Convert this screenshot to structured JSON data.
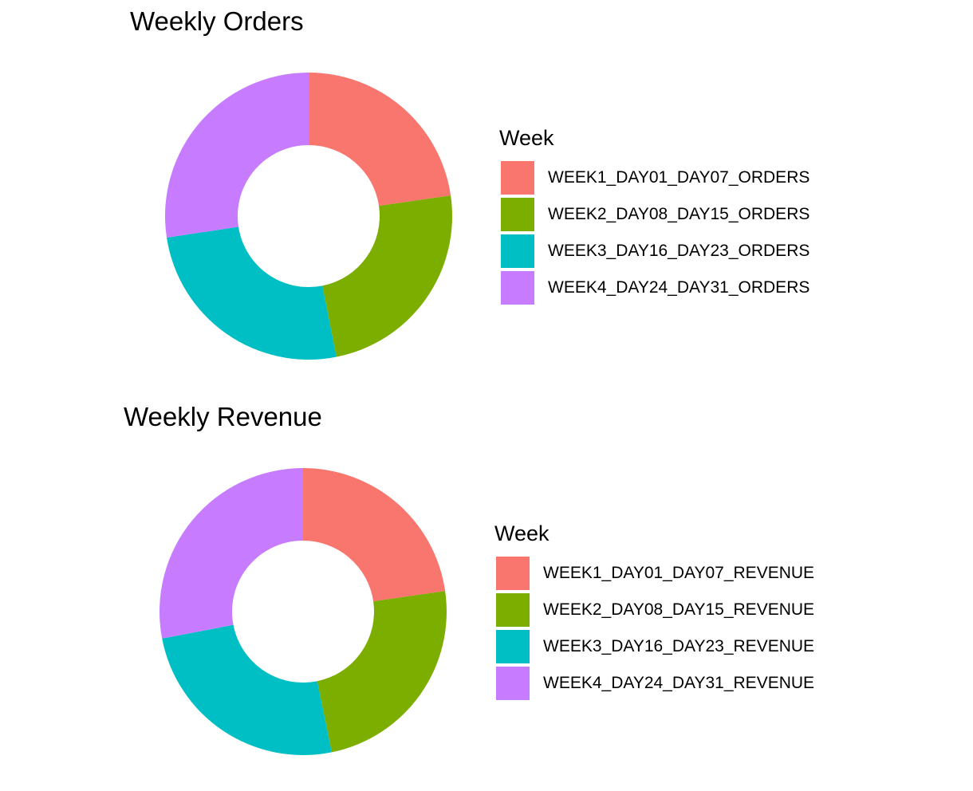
{
  "chart_data": [
    {
      "type": "pie",
      "style": "donut",
      "title": "Weekly Orders",
      "legend_title": "Week",
      "legend_position": "right",
      "categories": [
        "WEEK1_DAY01_DAY07_ORDERS",
        "WEEK2_DAY08_DAY15_ORDERS",
        "WEEK3_DAY16_DAY23_ORDERS",
        "WEEK4_DAY24_DAY31_ORDERS"
      ],
      "values": [
        22.7,
        24.2,
        25.7,
        27.4
      ],
      "colors": [
        "#F8766D",
        "#7CAE00",
        "#00BFC4",
        "#C77CFF"
      ]
    },
    {
      "type": "pie",
      "style": "donut",
      "title": "Weekly Revenue",
      "legend_title": "Week",
      "legend_position": "right",
      "categories": [
        "WEEK1_DAY01_DAY07_REVENUE",
        "WEEK2_DAY08_DAY15_REVENUE",
        "WEEK3_DAY16_DAY23_REVENUE",
        "WEEK4_DAY24_DAY31_REVENUE"
      ],
      "values": [
        22.7,
        24.1,
        25.2,
        28.0
      ],
      "colors": [
        "#F8766D",
        "#7CAE00",
        "#00BFC4",
        "#C77CFF"
      ]
    }
  ]
}
